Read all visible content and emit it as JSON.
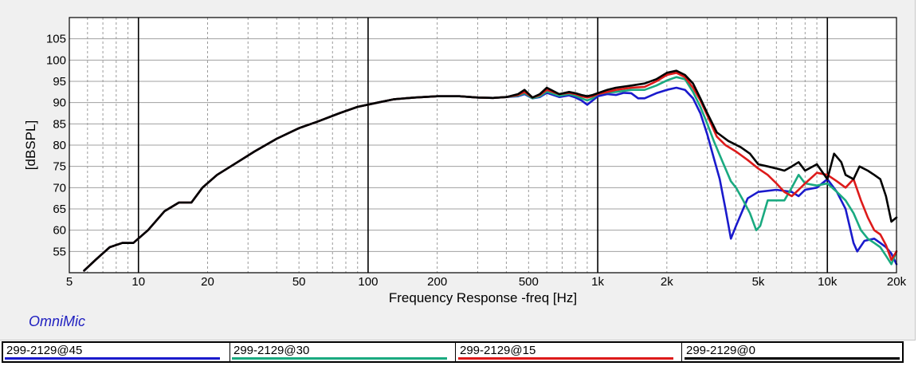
{
  "brand": "OmniMic",
  "chart_data": {
    "type": "line",
    "xlabel": "Frequency Response -freq [Hz]",
    "ylabel": "[dBSPL]",
    "xscale": "log",
    "xlim": [
      5,
      20000
    ],
    "ylim": [
      50,
      110
    ],
    "grid": true,
    "legend_position": "bottom",
    "y_ticks": [
      "55",
      "60",
      "65",
      "70",
      "75",
      "80",
      "85",
      "90",
      "95",
      "100",
      "105"
    ],
    "x_ticks": [
      {
        "value": 5,
        "label": "5"
      },
      {
        "value": 10,
        "label": "10"
      },
      {
        "value": 20,
        "label": "20"
      },
      {
        "value": 50,
        "label": "50"
      },
      {
        "value": 100,
        "label": "100"
      },
      {
        "value": 200,
        "label": "200"
      },
      {
        "value": 500,
        "label": "500"
      },
      {
        "value": 1000,
        "label": "1k"
      },
      {
        "value": 2000,
        "label": "2k"
      },
      {
        "value": 5000,
        "label": "5k"
      },
      {
        "value": 10000,
        "label": "10k"
      },
      {
        "value": 20000,
        "label": "20k"
      }
    ],
    "series": [
      {
        "name": "299-2129@45",
        "color": "#1a1acc",
        "points": [
          [
            5.8,
            50.5
          ],
          [
            6.5,
            53
          ],
          [
            7.5,
            56
          ],
          [
            8.5,
            57
          ],
          [
            9.5,
            57
          ],
          [
            11,
            60
          ],
          [
            13,
            64.5
          ],
          [
            15,
            66.5
          ],
          [
            17,
            66.5
          ],
          [
            19,
            70
          ],
          [
            22,
            73
          ],
          [
            27,
            76
          ],
          [
            32,
            78.5
          ],
          [
            40,
            81.5
          ],
          [
            50,
            84
          ],
          [
            60,
            85.5
          ],
          [
            75,
            87.5
          ],
          [
            90,
            89
          ],
          [
            110,
            90
          ],
          [
            130,
            90.8
          ],
          [
            160,
            91.2
          ],
          [
            200,
            91.5
          ],
          [
            250,
            91.5
          ],
          [
            300,
            91.2
          ],
          [
            350,
            91.1
          ],
          [
            400,
            91.3
          ],
          [
            450,
            91.5
          ],
          [
            480,
            92
          ],
          [
            520,
            91
          ],
          [
            560,
            91.3
          ],
          [
            600,
            92.3
          ],
          [
            680,
            91.3
          ],
          [
            750,
            91.7
          ],
          [
            800,
            91.2
          ],
          [
            850,
            90.5
          ],
          [
            900,
            89.5
          ],
          [
            950,
            90.5
          ],
          [
            1000,
            91.5
          ],
          [
            1100,
            92
          ],
          [
            1200,
            91.8
          ],
          [
            1300,
            92.3
          ],
          [
            1400,
            92.2
          ],
          [
            1500,
            91
          ],
          [
            1600,
            91
          ],
          [
            1800,
            92.2
          ],
          [
            2000,
            93
          ],
          [
            2200,
            93.5
          ],
          [
            2400,
            93
          ],
          [
            2600,
            91
          ],
          [
            2800,
            87.5
          ],
          [
            3000,
            82.5
          ],
          [
            3200,
            77
          ],
          [
            3400,
            72
          ],
          [
            3600,
            65
          ],
          [
            3800,
            58
          ],
          [
            4000,
            61
          ],
          [
            4500,
            67.5
          ],
          [
            5000,
            69
          ],
          [
            6000,
            69.5
          ],
          [
            7000,
            69
          ],
          [
            7500,
            68
          ],
          [
            8000,
            69.5
          ],
          [
            9000,
            70
          ],
          [
            10000,
            72
          ],
          [
            11000,
            69
          ],
          [
            12000,
            65
          ],
          [
            13000,
            57
          ],
          [
            13500,
            55
          ],
          [
            14500,
            57.5
          ],
          [
            16000,
            58
          ],
          [
            17000,
            57
          ],
          [
            18000,
            56
          ],
          [
            19000,
            54.5
          ],
          [
            20000,
            52
          ]
        ]
      },
      {
        "name": "299-2129@30",
        "color": "#1aaa80",
        "points": [
          [
            5.8,
            50.5
          ],
          [
            6.5,
            53
          ],
          [
            7.5,
            56
          ],
          [
            8.5,
            57
          ],
          [
            9.5,
            57
          ],
          [
            11,
            60
          ],
          [
            13,
            64.5
          ],
          [
            15,
            66.5
          ],
          [
            17,
            66.5
          ],
          [
            19,
            70
          ],
          [
            22,
            73
          ],
          [
            27,
            76
          ],
          [
            32,
            78.5
          ],
          [
            40,
            81.5
          ],
          [
            50,
            84
          ],
          [
            60,
            85.5
          ],
          [
            75,
            87.5
          ],
          [
            90,
            89
          ],
          [
            110,
            90
          ],
          [
            130,
            90.8
          ],
          [
            160,
            91.2
          ],
          [
            200,
            91.5
          ],
          [
            250,
            91.5
          ],
          [
            300,
            91.2
          ],
          [
            350,
            91.1
          ],
          [
            400,
            91.3
          ],
          [
            450,
            91.6
          ],
          [
            480,
            92.2
          ],
          [
            520,
            91
          ],
          [
            560,
            91.5
          ],
          [
            600,
            92.6
          ],
          [
            680,
            91.6
          ],
          [
            750,
            92
          ],
          [
            800,
            91.6
          ],
          [
            850,
            91
          ],
          [
            900,
            90.5
          ],
          [
            950,
            91
          ],
          [
            1000,
            92
          ],
          [
            1100,
            92.4
          ],
          [
            1200,
            92.5
          ],
          [
            1400,
            93
          ],
          [
            1600,
            93
          ],
          [
            1800,
            94
          ],
          [
            2000,
            95.2
          ],
          [
            2200,
            96
          ],
          [
            2400,
            95.5
          ],
          [
            2600,
            92.5
          ],
          [
            2800,
            89
          ],
          [
            3000,
            85
          ],
          [
            3200,
            81
          ],
          [
            3500,
            76
          ],
          [
            3800,
            71.5
          ],
          [
            4000,
            70
          ],
          [
            4300,
            67
          ],
          [
            4600,
            64
          ],
          [
            4900,
            60
          ],
          [
            5100,
            61
          ],
          [
            5500,
            67
          ],
          [
            6000,
            67
          ],
          [
            6500,
            67
          ],
          [
            7000,
            70
          ],
          [
            7500,
            73
          ],
          [
            8000,
            71
          ],
          [
            9000,
            70.5
          ],
          [
            10000,
            71
          ],
          [
            11000,
            69
          ],
          [
            12000,
            67
          ],
          [
            13000,
            64
          ],
          [
            14000,
            60
          ],
          [
            15000,
            58
          ],
          [
            16000,
            57
          ],
          [
            17000,
            56
          ],
          [
            18000,
            54
          ],
          [
            19000,
            52
          ],
          [
            20000,
            55
          ]
        ]
      },
      {
        "name": "299-2129@15",
        "color": "#dd1a1a",
        "points": [
          [
            5.8,
            50.5
          ],
          [
            6.5,
            53
          ],
          [
            7.5,
            56
          ],
          [
            8.5,
            57
          ],
          [
            9.5,
            57
          ],
          [
            11,
            60
          ],
          [
            13,
            64.5
          ],
          [
            15,
            66.5
          ],
          [
            17,
            66.5
          ],
          [
            19,
            70
          ],
          [
            22,
            73
          ],
          [
            27,
            76
          ],
          [
            32,
            78.5
          ],
          [
            40,
            81.5
          ],
          [
            50,
            84
          ],
          [
            60,
            85.5
          ],
          [
            75,
            87.5
          ],
          [
            90,
            89
          ],
          [
            110,
            90
          ],
          [
            130,
            90.8
          ],
          [
            160,
            91.2
          ],
          [
            200,
            91.5
          ],
          [
            250,
            91.5
          ],
          [
            300,
            91.2
          ],
          [
            350,
            91.1
          ],
          [
            400,
            91.3
          ],
          [
            450,
            91.8
          ],
          [
            480,
            92.5
          ],
          [
            520,
            91.2
          ],
          [
            560,
            91.8
          ],
          [
            600,
            93
          ],
          [
            680,
            92
          ],
          [
            750,
            92.3
          ],
          [
            800,
            92
          ],
          [
            850,
            91.5
          ],
          [
            900,
            91.2
          ],
          [
            950,
            91.5
          ],
          [
            1000,
            92
          ],
          [
            1100,
            92.5
          ],
          [
            1200,
            93
          ],
          [
            1400,
            93.5
          ],
          [
            1600,
            93.7
          ],
          [
            1800,
            95
          ],
          [
            2000,
            96.5
          ],
          [
            2200,
            97
          ],
          [
            2400,
            96
          ],
          [
            2600,
            93.5
          ],
          [
            2800,
            90.5
          ],
          [
            3000,
            87
          ],
          [
            3300,
            82
          ],
          [
            3600,
            80
          ],
          [
            4000,
            78.5
          ],
          [
            4500,
            76.5
          ],
          [
            5000,
            74.5
          ],
          [
            5500,
            73
          ],
          [
            6000,
            71
          ],
          [
            6500,
            69
          ],
          [
            7000,
            68
          ],
          [
            7500,
            69.5
          ],
          [
            8000,
            71
          ],
          [
            9000,
            73.5
          ],
          [
            10000,
            73
          ],
          [
            11000,
            71.5
          ],
          [
            12000,
            70
          ],
          [
            13000,
            72
          ],
          [
            14000,
            67
          ],
          [
            15000,
            63
          ],
          [
            16000,
            60
          ],
          [
            17000,
            59
          ],
          [
            18000,
            56.5
          ],
          [
            19000,
            53
          ],
          [
            20000,
            55
          ]
        ]
      },
      {
        "name": "299-2129@0",
        "color": "#000000",
        "points": [
          [
            5.8,
            50.5
          ],
          [
            6.5,
            53
          ],
          [
            7.5,
            56
          ],
          [
            8.5,
            57
          ],
          [
            9.5,
            57
          ],
          [
            11,
            60
          ],
          [
            13,
            64.5
          ],
          [
            15,
            66.5
          ],
          [
            17,
            66.5
          ],
          [
            19,
            70
          ],
          [
            22,
            73
          ],
          [
            27,
            76
          ],
          [
            32,
            78.5
          ],
          [
            40,
            81.5
          ],
          [
            50,
            84
          ],
          [
            60,
            85.5
          ],
          [
            75,
            87.5
          ],
          [
            90,
            89
          ],
          [
            110,
            90
          ],
          [
            130,
            90.8
          ],
          [
            160,
            91.2
          ],
          [
            200,
            91.5
          ],
          [
            250,
            91.5
          ],
          [
            300,
            91.2
          ],
          [
            350,
            91.1
          ],
          [
            400,
            91.3
          ],
          [
            450,
            92
          ],
          [
            480,
            93
          ],
          [
            520,
            91.2
          ],
          [
            560,
            92
          ],
          [
            600,
            93.5
          ],
          [
            680,
            92
          ],
          [
            750,
            92.5
          ],
          [
            800,
            92.2
          ],
          [
            850,
            91.8
          ],
          [
            900,
            91.5
          ],
          [
            950,
            91.8
          ],
          [
            1000,
            92.2
          ],
          [
            1100,
            93
          ],
          [
            1200,
            93.5
          ],
          [
            1400,
            94
          ],
          [
            1600,
            94.5
          ],
          [
            1800,
            95.5
          ],
          [
            2000,
            97
          ],
          [
            2200,
            97.5
          ],
          [
            2400,
            96.5
          ],
          [
            2600,
            94.5
          ],
          [
            2800,
            91
          ],
          [
            3000,
            87.5
          ],
          [
            3300,
            83
          ],
          [
            3700,
            81
          ],
          [
            4200,
            79.5
          ],
          [
            4600,
            78
          ],
          [
            5000,
            75.5
          ],
          [
            5500,
            75
          ],
          [
            6000,
            74.5
          ],
          [
            6500,
            74
          ],
          [
            7000,
            75
          ],
          [
            7500,
            76
          ],
          [
            8000,
            74
          ],
          [
            9000,
            75.5
          ],
          [
            10000,
            72
          ],
          [
            10700,
            78
          ],
          [
            11500,
            76
          ],
          [
            12000,
            73
          ],
          [
            13000,
            72
          ],
          [
            13800,
            75
          ],
          [
            15000,
            74
          ],
          [
            16000,
            73
          ],
          [
            17000,
            72
          ],
          [
            18000,
            68
          ],
          [
            19000,
            62
          ],
          [
            20000,
            63
          ]
        ]
      }
    ]
  },
  "legend": [
    {
      "label": "299-2129@45",
      "color": "#1a1acc"
    },
    {
      "label": "299-2129@30",
      "color": "#1aaa80"
    },
    {
      "label": "299-2129@15",
      "color": "#dd1a1a"
    },
    {
      "label": "299-2129@0",
      "color": "#000000"
    }
  ]
}
